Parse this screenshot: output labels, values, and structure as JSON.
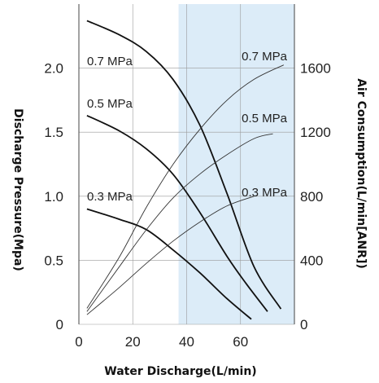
{
  "chart_data": {
    "type": "line",
    "xlabel": "Water Discharge(L/min)",
    "ylabel": "Discharge Pressure(Mpa)",
    "y2label": "Air Consumption(L/min[ANR])",
    "x_ticks": [
      "0",
      "20",
      "40",
      "60"
    ],
    "y_ticks": [
      "0",
      "0.5",
      "1.0",
      "1.5",
      "2.0"
    ],
    "y2_ticks": [
      "0",
      "400",
      "800",
      "1200",
      "1600"
    ],
    "xlim": [
      0,
      80
    ],
    "ylim": [
      0,
      2.5
    ],
    "y2lim": [
      0,
      2000
    ],
    "grid": true,
    "shaded_x_range": [
      37,
      80
    ],
    "colors": {
      "shade": "#dcecf8",
      "grid": "#9a9a9a",
      "pressure_line": "#111111",
      "air_line": "#333333"
    },
    "series": [
      {
        "name": "0.7 MPa",
        "axis": "left",
        "x": [
          3,
          15,
          25,
          35,
          45,
          55,
          65,
          75
        ],
        "y": [
          2.37,
          2.26,
          2.13,
          1.91,
          1.55,
          1.02,
          0.45,
          0.12
        ]
      },
      {
        "name": "0.5 MPa",
        "axis": "left",
        "x": [
          3,
          15,
          25,
          35,
          45,
          55,
          62,
          70
        ],
        "y": [
          1.63,
          1.51,
          1.37,
          1.17,
          0.87,
          0.53,
          0.32,
          0.1
        ]
      },
      {
        "name": "0.3 MPa",
        "axis": "left",
        "x": [
          3,
          15,
          25,
          35,
          45,
          55,
          64
        ],
        "y": [
          0.9,
          0.82,
          0.74,
          0.58,
          0.4,
          0.2,
          0.04
        ]
      },
      {
        "name": "0.7 MPa",
        "axis": "right",
        "x": [
          3,
          15,
          25,
          35,
          45,
          55,
          65,
          76
        ],
        "y": [
          100,
          420,
          730,
          1000,
          1220,
          1400,
          1530,
          1620
        ]
      },
      {
        "name": "0.5 MPa",
        "axis": "right",
        "x": [
          3,
          15,
          25,
          35,
          45,
          55,
          65,
          72
        ],
        "y": [
          80,
          360,
          590,
          790,
          940,
          1060,
          1160,
          1190
        ]
      },
      {
        "name": "0.3 MPa",
        "axis": "right",
        "x": [
          3,
          15,
          25,
          35,
          45,
          55,
          65
        ],
        "y": [
          60,
          230,
          380,
          520,
          640,
          740,
          800
        ]
      }
    ]
  }
}
